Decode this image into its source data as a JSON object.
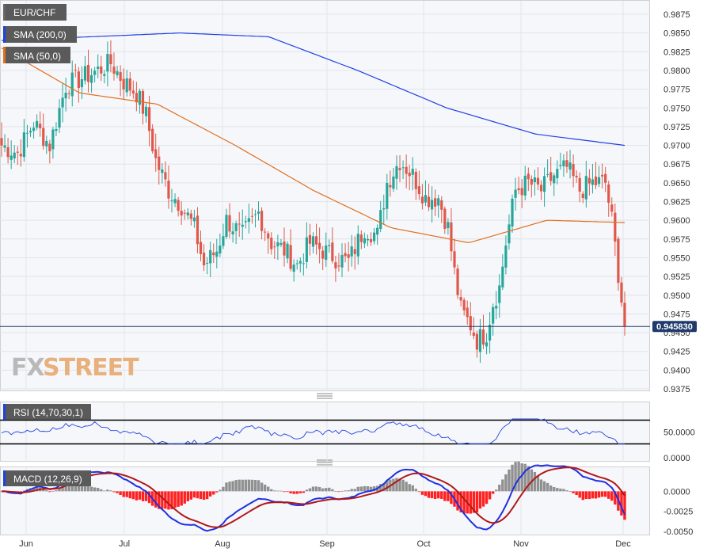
{
  "chart_data": [
    {
      "type": "candlestick",
      "legend": [
        {
          "label": "EUR/CHF",
          "color": "#666666"
        },
        {
          "label": "SMA (200,0)",
          "color": "#2040e0"
        },
        {
          "label": "SMA (50,0)",
          "color": "#e07020"
        }
      ],
      "y_ticks": [
        "0.9875",
        "0.9850",
        "0.9825",
        "0.9800",
        "0.9775",
        "0.9750",
        "0.9725",
        "0.9700",
        "0.9675",
        "0.9650",
        "0.9625",
        "0.9600",
        "0.9575",
        "0.9550",
        "0.9525",
        "0.9500",
        "0.9475",
        "0.9450",
        "0.9425",
        "0.9400",
        "0.9375"
      ],
      "ylim": [
        0.9375,
        0.9875
      ],
      "x_ticks": [
        "Jun",
        "Jul",
        "Aug",
        "Sep",
        "Oct",
        "Nov",
        "Dec"
      ],
      "last_price": 0.94583,
      "last_price_label": "0.945830",
      "up_color": "#26a69a",
      "down_color": "#e0584a",
      "sma200": [
        0.984,
        0.9845,
        0.985,
        0.9845,
        0.98,
        0.975,
        0.9715,
        0.97
      ],
      "sma50": [
        0.983,
        0.977,
        0.9755,
        0.97,
        0.964,
        0.959,
        0.957,
        0.96,
        0.9597
      ]
    },
    {
      "type": "line",
      "title": "RSI (14,70,30,1)",
      "y_ticks": [
        "50.0000",
        "0.0000"
      ],
      "levels": [
        70,
        30
      ],
      "ylim": [
        0,
        100
      ],
      "series": [
        {
          "color": "#2040e0"
        }
      ]
    },
    {
      "type": "histogram",
      "title": "MACD (12,26,9)",
      "y_ticks": [
        "0.0000",
        "-0.0025",
        "-0.0050"
      ],
      "ylim": [
        -0.0055,
        0.003
      ],
      "series": [
        {
          "color": "#2030e0"
        },
        {
          "color": "#b01818"
        }
      ],
      "histogram_colors": {
        "positive": "#909090",
        "negative": "#ff2020"
      }
    }
  ],
  "watermark": {
    "part1": "FX",
    "part2": "STREET"
  }
}
